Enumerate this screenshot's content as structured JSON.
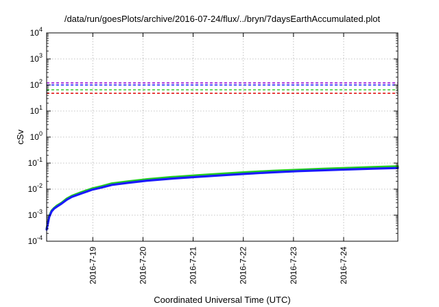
{
  "chart_data": {
    "type": "line",
    "title": "/data/run/goesPlots/archive/2016-07-24/flux/../bryn/7daysEarthAccumulated.plot",
    "xlabel": "Coordinated Universal Time (UTC)",
    "ylabel": "cSv",
    "y_scale": "log",
    "ylim": [
      0.0001,
      10000
    ],
    "xlim": [
      0,
      7.0
    ],
    "y_ticks": [
      {
        "value": 0.0001,
        "base": "10",
        "exp": "-4"
      },
      {
        "value": 0.001,
        "base": "10",
        "exp": "-3"
      },
      {
        "value": 0.01,
        "base": "10",
        "exp": "-2"
      },
      {
        "value": 0.1,
        "base": "10",
        "exp": "-1"
      },
      {
        "value": 1,
        "base": "10",
        "exp": "0"
      },
      {
        "value": 10,
        "base": "10",
        "exp": "1"
      },
      {
        "value": 100,
        "base": "10",
        "exp": "2"
      },
      {
        "value": 1000,
        "base": "10",
        "exp": "3"
      },
      {
        "value": 10000,
        "base": "10",
        "exp": "4"
      }
    ],
    "x_ticks": [
      {
        "value": 0.92,
        "label": "2016-7-19"
      },
      {
        "value": 1.92,
        "label": "2016-7-20"
      },
      {
        "value": 2.92,
        "label": "2016-7-21"
      },
      {
        "value": 3.92,
        "label": "2016-7-22"
      },
      {
        "value": 4.92,
        "label": "2016-7-23"
      },
      {
        "value": 5.92,
        "label": "2016-7-24"
      }
    ],
    "grid": true,
    "thresholds": [
      {
        "value": 120,
        "color": "#9400d3"
      },
      {
        "value": 100,
        "color": "#1a1aff"
      },
      {
        "value": 65,
        "color": "#22cc22"
      },
      {
        "value": 48,
        "color": "#e00000"
      }
    ],
    "series": [
      {
        "color": "#22cc22",
        "x": [
          0,
          0.05,
          0.1,
          0.15,
          0.2,
          0.3,
          0.4,
          0.5,
          0.7,
          0.9,
          1.1,
          1.3,
          1.6,
          2.0,
          2.5,
          3.0,
          3.5,
          4.0,
          4.5,
          5.0,
          5.5,
          6.0,
          6.5,
          7.0
        ],
        "y": [
          0.0003,
          0.0009,
          0.0015,
          0.0019,
          0.0023,
          0.003,
          0.0043,
          0.0055,
          0.0077,
          0.0105,
          0.013,
          0.0165,
          0.0195,
          0.024,
          0.029,
          0.034,
          0.039,
          0.045,
          0.05,
          0.055,
          0.06,
          0.065,
          0.07,
          0.075
        ]
      },
      {
        "color": "#1a1aff",
        "x": [
          0,
          0.05,
          0.1,
          0.15,
          0.2,
          0.3,
          0.4,
          0.5,
          0.7,
          0.9,
          1.1,
          1.3,
          1.6,
          2.0,
          2.5,
          3.0,
          3.5,
          4.0,
          4.5,
          5.0,
          5.5,
          6.0,
          6.5,
          7.0
        ],
        "y": [
          0.00028,
          0.00085,
          0.0014,
          0.0018,
          0.0021,
          0.0028,
          0.0039,
          0.005,
          0.0069,
          0.0094,
          0.0116,
          0.0146,
          0.0173,
          0.0212,
          0.0255,
          0.0295,
          0.034,
          0.039,
          0.044,
          0.049,
          0.053,
          0.057,
          0.061,
          0.065
        ]
      }
    ]
  }
}
